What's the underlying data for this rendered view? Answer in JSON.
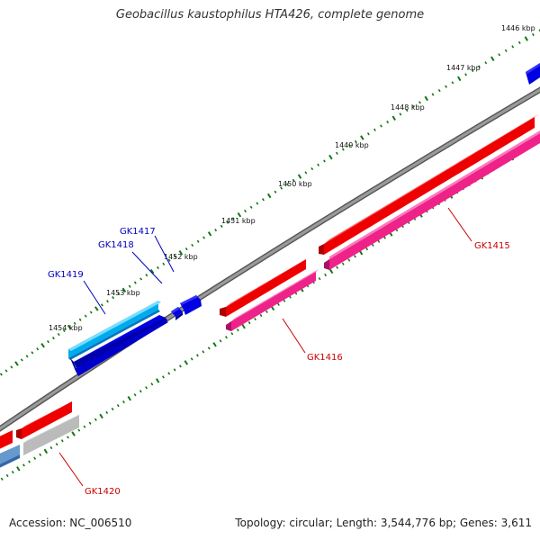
{
  "title": "Geobacillus kaustophilus HTA426, complete genome",
  "footer": {
    "accession": "Accession: NC_006510",
    "summary": "Topology: circular; Length: 3,544,776 bp; Genes: 3,611"
  },
  "kbp_labels": [
    "1446 kbp",
    "1447 kbp",
    "1448 kbp",
    "1449 kbp",
    "1450 kbp",
    "1451 kbp",
    "1452 kbp",
    "1453 kbp",
    "1454 kbp"
  ],
  "genes": [
    {
      "name": "GK1415",
      "strand": "reverse",
      "color": "#e00000"
    },
    {
      "name": "GK1416",
      "strand": "reverse",
      "color": "#e00000"
    },
    {
      "name": "GK1417",
      "strand": "forward",
      "color": "#0000cc"
    },
    {
      "name": "GK1418",
      "strand": "forward",
      "color": "#0000cc"
    },
    {
      "name": "GK1419",
      "strand": "forward",
      "color": "#0000cc"
    },
    {
      "name": "GK1420",
      "strand": "reverse",
      "color": "#e00000"
    }
  ],
  "colors": {
    "backbone": "#888888",
    "tick": "#117711",
    "forward_cds": "#0000e0",
    "forward_feature": "#00aaee",
    "reverse_cds": "#ee0000",
    "reverse_feature": "#ee2288",
    "pseudo_feature": "#bbbbbb",
    "forward_label": "#0000bb",
    "reverse_label": "#cc0000"
  }
}
